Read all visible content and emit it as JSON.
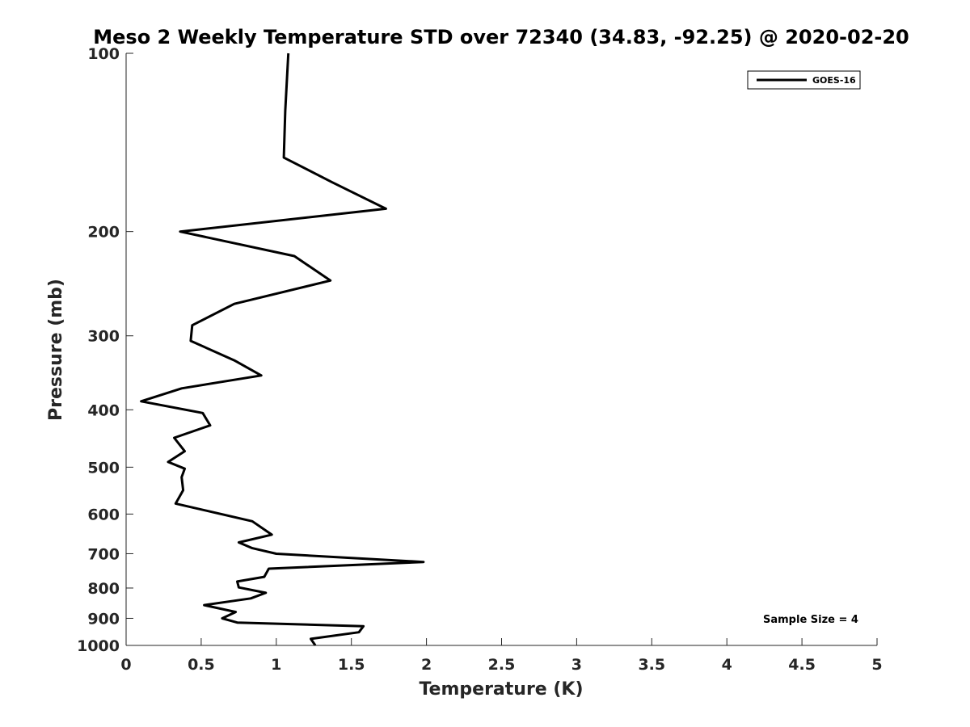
{
  "chart_data": {
    "type": "line",
    "title": "Meso 2 Weekly Temperature STD over 72340 (34.83, -92.25) @ 2020-02-20",
    "xlabel": "Temperature (K)",
    "ylabel": "Pressure (mb)",
    "xlim": [
      0,
      5
    ],
    "ylim": [
      100,
      1000
    ],
    "y_scale": "log",
    "y_reversed": true,
    "grid": false,
    "legend_position": "top-right",
    "x_ticks": [
      "0",
      "0.5",
      "1",
      "1.5",
      "2",
      "2.5",
      "3",
      "3.5",
      "4",
      "4.5",
      "5"
    ],
    "y_ticks": [
      "100",
      "200",
      "300",
      "400",
      "500",
      "600",
      "700",
      "800",
      "900",
      "1000"
    ],
    "annotation": "Sample Size = 4",
    "series": [
      {
        "name": "GOES-16",
        "color": "#000000",
        "points": [
          [
            1.08,
            100
          ],
          [
            1.06,
            125
          ],
          [
            1.05,
            150
          ],
          [
            1.37,
            165
          ],
          [
            1.73,
            183
          ],
          [
            0.36,
            200
          ],
          [
            1.12,
            220
          ],
          [
            1.36,
            242
          ],
          [
            0.72,
            265
          ],
          [
            0.44,
            288
          ],
          [
            0.43,
            306
          ],
          [
            0.72,
            330
          ],
          [
            0.9,
            350
          ],
          [
            0.37,
            368
          ],
          [
            0.1,
            387
          ],
          [
            0.51,
            405
          ],
          [
            0.56,
            425
          ],
          [
            0.32,
            446
          ],
          [
            0.39,
            470
          ],
          [
            0.28,
            490
          ],
          [
            0.39,
            503
          ],
          [
            0.37,
            520
          ],
          [
            0.38,
            547
          ],
          [
            0.33,
            576
          ],
          [
            0.84,
            617
          ],
          [
            0.97,
            650
          ],
          [
            0.75,
            670
          ],
          [
            0.84,
            685
          ],
          [
            1.0,
            700
          ],
          [
            1.98,
            723
          ],
          [
            0.95,
            742
          ],
          [
            0.92,
            766
          ],
          [
            0.74,
            780
          ],
          [
            0.75,
            798
          ],
          [
            0.93,
            815
          ],
          [
            0.83,
            833
          ],
          [
            0.52,
            855
          ],
          [
            0.73,
            878
          ],
          [
            0.64,
            900
          ],
          [
            0.74,
            915
          ],
          [
            1.58,
            928
          ],
          [
            1.55,
            950
          ],
          [
            1.23,
            975
          ],
          [
            1.26,
            1000
          ]
        ]
      }
    ]
  }
}
